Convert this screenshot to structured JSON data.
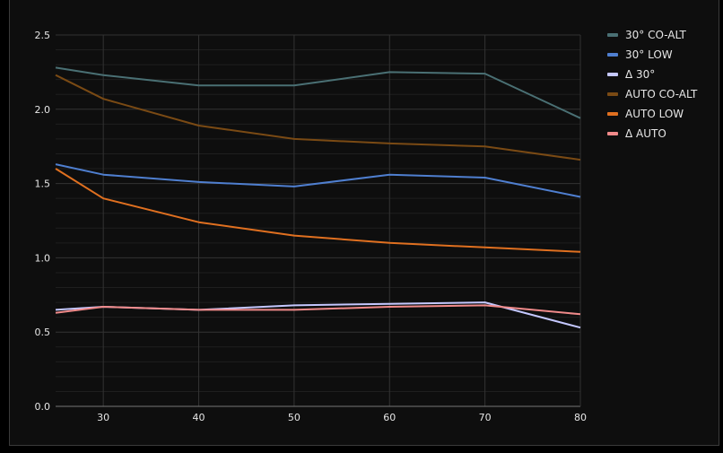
{
  "chart_data": {
    "type": "line",
    "x": [
      25,
      30,
      40,
      50,
      60,
      70,
      80
    ],
    "xlim": [
      25,
      80
    ],
    "ylim": [
      0,
      2.5
    ],
    "x_ticks": [
      30,
      40,
      50,
      60,
      70,
      80
    ],
    "y_ticks": [
      0.0,
      0.5,
      1.0,
      1.5,
      2.0,
      2.5
    ],
    "x_tick_labels": [
      "30",
      "40",
      "50",
      "60",
      "70",
      "80"
    ],
    "y_tick_labels": [
      "0.0",
      "0.5",
      "1.0",
      "1.5",
      "2.0",
      "2.5"
    ],
    "grid": true,
    "legend_position": "top-right",
    "series": [
      {
        "name": "30° CO-ALT",
        "color": "#4a7074",
        "values": [
          2.28,
          2.23,
          2.16,
          2.16,
          2.25,
          2.24,
          1.94
        ]
      },
      {
        "name": "30° LOW",
        "color": "#4f7fd0",
        "values": [
          1.63,
          1.56,
          1.51,
          1.48,
          1.56,
          1.54,
          1.41
        ]
      },
      {
        "name": "Δ 30°",
        "color": "#c5c8ff",
        "values": [
          0.65,
          0.67,
          0.65,
          0.68,
          0.69,
          0.7,
          0.53
        ]
      },
      {
        "name": "AUTO CO-ALT",
        "color": "#7a4a14",
        "values": [
          2.23,
          2.07,
          1.89,
          1.8,
          1.77,
          1.75,
          1.66
        ]
      },
      {
        "name": "AUTO LOW",
        "color": "#e07020",
        "values": [
          1.6,
          1.4,
          1.24,
          1.15,
          1.1,
          1.07,
          1.04
        ]
      },
      {
        "name": "Δ AUTO",
        "color": "#f08a8a",
        "values": [
          0.63,
          0.67,
          0.65,
          0.65,
          0.67,
          0.68,
          0.62
        ]
      }
    ]
  }
}
